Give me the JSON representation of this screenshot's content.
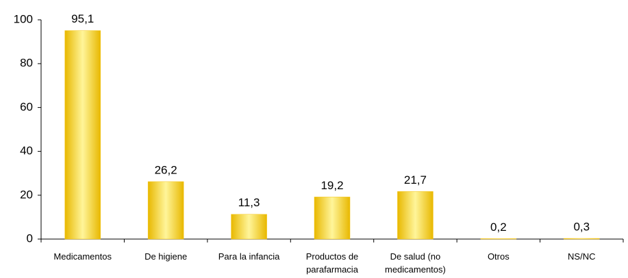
{
  "chart_data": {
    "type": "bar",
    "categories": [
      "Medicamentos",
      "De higiene",
      "Para la infancia",
      "Productos de parafarmacia",
      "De salud (no medicamentos)",
      "Otros",
      "NS/NC"
    ],
    "values": [
      95.1,
      26.2,
      11.3,
      19.2,
      21.7,
      0.2,
      0.3
    ],
    "value_labels": [
      "95,1",
      "26,2",
      "11,3",
      "19,2",
      "21,7",
      "0,2",
      "0,3"
    ],
    "color": "#f5c518",
    "ylim": [
      0,
      100
    ],
    "yticks": [
      0,
      20,
      40,
      60,
      80,
      100
    ],
    "grid": false
  }
}
